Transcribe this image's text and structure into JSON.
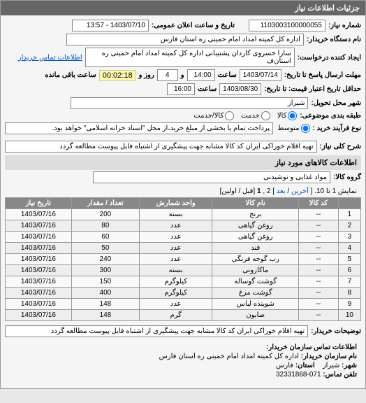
{
  "header": {
    "title": "جزئیات اطلاعات نیاز"
  },
  "fields": {
    "need_no_label": "شماره نیاز:",
    "need_no": "1103003100000055",
    "announce_label": "تاریخ و ساعت اعلان عمومی:",
    "announce_val": "1403/07/10 - 13:57",
    "org_label": "نام دستگاه خریدار:",
    "org_val": "اداره کل کمیته امداد امام خمینی ره استان فارس",
    "creator_label": "ایجاد کننده درخواست:",
    "creator_val": "سارا خسروی کاردان پشتیبانی اداره کل کمیته امداد امام خمینی ره استان‌ف",
    "contact_link": "اطلاعات تماس خریدار",
    "resp_deadline_label": "مهلت ارسال پاسخ تا تاریخ:",
    "resp_date": "1403/07/14",
    "hour_label": "ساعت",
    "resp_hour": "14:00",
    "and_label": "و",
    "days_val": "4",
    "day_label": "روز و",
    "time_remain": "00:02:18",
    "remain_label": "ساعت باقی مانده",
    "price_valid_label": "حداقل تاریخ اعتبار قیمت: تا تاریخ:",
    "price_date": "1403/08/30",
    "price_hour": "16:00",
    "delivery_city_label": "شهر محل تحویل:",
    "delivery_city": "شیراز",
    "package_label": "طبقه بندی موضوعی:",
    "pkg_goods": "کالا",
    "pkg_service": "خدمت",
    "pkg_both": "کالا/خدمت",
    "process_label": "نوع فرآیند خرید :",
    "proc_medium": "متوسط",
    "proc_note": "پرداخت تمام یا بخشی از مبلغ خرید،از محل \"اسناد خزانه اسلامی\" خواهد بود.",
    "need_desc_label": "شرح کلی نیاز:",
    "need_desc": "تهیه اقلام خوراکی ایران کد کالا مشابه جهت پیشگیری از اشتباه فایل پیوست مطالعه گردد",
    "goods_section": "اطلاعات کالاهای مورد نیاز",
    "group_label": "گروه کالا:",
    "group_val": "مواد غذایی و نوشیدنی",
    "buyer_notes_label": "توضیحات خریدار:",
    "buyer_notes": "تهیه اقلام خوراکی ایران کد کالا مشابه جهت پیشگیری از اشتباه فایل پیوست مطالعه گردد"
  },
  "pagination": {
    "text_pre": "نمایش 1 تا 10. [",
    "last": "آخرین",
    "sep": " / ",
    "next": "بعد",
    "mid": "] 2 ,",
    "cur": "1",
    "post": " [قبل / اولین]"
  },
  "table": {
    "headers": [
      "",
      "کد کالا",
      "نام کالا",
      "واحد شمارش",
      "تعداد / مقدار",
      "تاریخ نیاز"
    ],
    "rows": [
      [
        "1",
        "--",
        "برنج",
        "بسته",
        "200",
        "1403/07/16"
      ],
      [
        "2",
        "--",
        "روغن گیاهی",
        "عدد",
        "80",
        "1403/07/16"
      ],
      [
        "3",
        "--",
        "روغن گیاهی",
        "عدد",
        "60",
        "1403/07/16"
      ],
      [
        "4",
        "--",
        "قند",
        "عدد",
        "50",
        "1403/07/16"
      ],
      [
        "5",
        "--",
        "رب گوجه فرنگی",
        "عدد",
        "240",
        "1403/07/16"
      ],
      [
        "6",
        "--",
        "ماکارونی",
        "بسته",
        "300",
        "1403/07/16"
      ],
      [
        "7",
        "--",
        "گوشت گوساله",
        "کیلوگرم",
        "150",
        "1403/07/16"
      ],
      [
        "8",
        "--",
        "گوشت مرغ",
        "کیلوگرم",
        "400",
        "1403/07/16"
      ],
      [
        "9",
        "--",
        "شوینده لباس",
        "عدد",
        "148",
        "1403/07/16"
      ],
      [
        "10",
        "--",
        "صابون",
        "گرم",
        "148",
        "1403/07/16"
      ]
    ]
  },
  "footer": {
    "section": "اطلاعات تماس سازمان خریدار:",
    "org_label": "نام سازمان خریدار:",
    "org": "اداره کل کمیته امداد امام خمینی ره استان فارس",
    "city_label": "شهر:",
    "city": "شیراز",
    "province_label": "استان:",
    "province": "فارس",
    "phone_label": "تلفن تماس:",
    "phone": "071-32331868"
  },
  "colors": {
    "header_bg": "#666666",
    "header_fg": "#ffffff",
    "th_bg": "#888888",
    "field_border": "#888888",
    "link": "#0055cc",
    "highlight": "#fff8b0"
  }
}
